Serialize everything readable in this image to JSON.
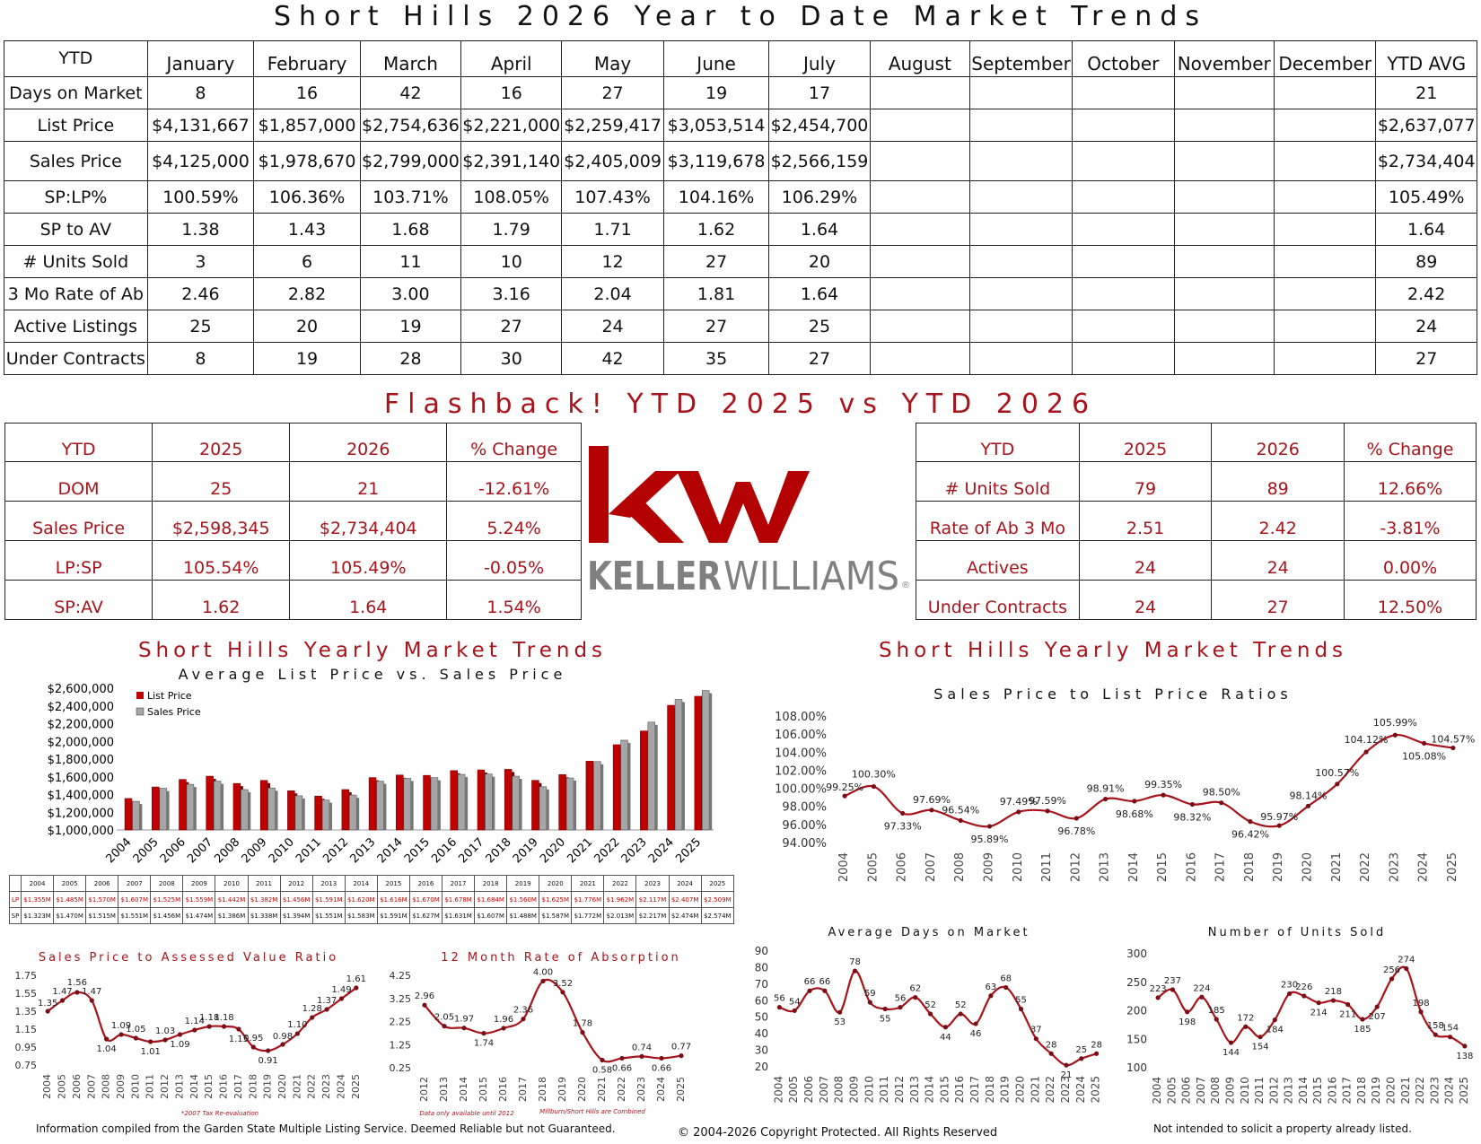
{
  "title": "Short Hills 2026 Year to Date Market Trends",
  "ytd_table": {
    "corner": "YTD",
    "months": [
      "January",
      "February",
      "March",
      "April",
      "May",
      "June",
      "July",
      "August",
      "September",
      "October",
      "November",
      "December",
      "YTD AVG"
    ],
    "rows": [
      {
        "label": "Days on Market",
        "values": [
          "8",
          "16",
          "42",
          "16",
          "27",
          "19",
          "17",
          "",
          "",
          "",
          "",
          "",
          "21"
        ]
      },
      {
        "label": "List Price",
        "values": [
          "$4,131,667",
          "$1,857,000",
          "$2,754,636",
          "$2,221,000",
          "$2,259,417",
          "$3,053,514",
          "$2,454,700",
          "",
          "",
          "",
          "",
          "",
          "$2,637,077"
        ]
      },
      {
        "label": "Sales Price",
        "values": [
          "$4,125,000",
          "$1,978,670",
          "$2,799,000",
          "$2,391,140",
          "$2,405,009",
          "$3,119,678",
          "$2,566,159",
          "",
          "",
          "",
          "",
          "",
          "$2,734,404"
        ]
      },
      {
        "label": "SP:LP%",
        "values": [
          "100.59%",
          "106.36%",
          "103.71%",
          "108.05%",
          "107.43%",
          "104.16%",
          "106.29%",
          "",
          "",
          "",
          "",
          "",
          "105.49%"
        ]
      },
      {
        "label": "SP to AV",
        "values": [
          "1.38",
          "1.43",
          "1.68",
          "1.79",
          "1.71",
          "1.62",
          "1.64",
          "",
          "",
          "",
          "",
          "",
          "1.64"
        ]
      },
      {
        "label": "# Units Sold",
        "values": [
          "3",
          "6",
          "11",
          "10",
          "12",
          "27",
          "20",
          "",
          "",
          "",
          "",
          "",
          "89"
        ]
      },
      {
        "label": "3 Mo Rate of Ab",
        "values": [
          "2.46",
          "2.82",
          "3.00",
          "3.16",
          "2.04",
          "1.81",
          "1.64",
          "",
          "",
          "",
          "",
          "",
          "2.42"
        ]
      },
      {
        "label": "Active Listings",
        "values": [
          "25",
          "20",
          "19",
          "27",
          "24",
          "27",
          "25",
          "",
          "",
          "",
          "",
          "",
          "24"
        ]
      },
      {
        "label": "Under Contracts",
        "values": [
          "8",
          "19",
          "28",
          "30",
          "42",
          "35",
          "27",
          "",
          "",
          "",
          "",
          "",
          "27"
        ]
      }
    ]
  },
  "flashback_title": "Flashback!  YTD 2025 vs YTD 2026",
  "compare_left": {
    "headers": [
      "YTD",
      "2025",
      "2026",
      "% Change"
    ],
    "rows": [
      [
        "DOM",
        "25",
        "21",
        "-12.61%"
      ],
      [
        "Sales Price",
        "$2,598,345",
        "$2,734,404",
        "5.24%"
      ],
      [
        "LP:SP",
        "105.54%",
        "105.49%",
        "-0.05%"
      ],
      [
        "SP:AV",
        "1.62",
        "1.64",
        "1.54%"
      ]
    ]
  },
  "compare_right": {
    "headers": [
      "YTD",
      "2025",
      "2026",
      "% Change"
    ],
    "rows": [
      [
        "# Units Sold",
        "79",
        "89",
        "12.66%"
      ],
      [
        "Rate of Ab 3 Mo",
        "2.51",
        "2.42",
        "-3.81%"
      ],
      [
        "Actives",
        "24",
        "24",
        "0.00%"
      ],
      [
        "Under Contracts",
        "24",
        "27",
        "12.50%"
      ]
    ]
  },
  "logo": {
    "mark": "kw",
    "wordmark_bold": "KELLER",
    "wordmark_light": "WILLIAMS",
    "registered": "®",
    "colors": {
      "red": "#b40101",
      "gray": "#808080"
    }
  },
  "accent_color": "#a8141c",
  "chart_data": [
    {
      "id": "list-vs-sales",
      "type": "bar",
      "title": "Short Hills Yearly Market Trends",
      "subtitle": "Average List Price vs. Sales Price",
      "categories": [
        "2004",
        "2005",
        "2006",
        "2007",
        "2008",
        "2009",
        "2010",
        "2011",
        "2012",
        "2013",
        "2014",
        "2015",
        "2016",
        "2017",
        "2018",
        "2019",
        "2020",
        "2021",
        "2022",
        "2023",
        "2024",
        "2025"
      ],
      "series": [
        {
          "name": "List Price",
          "color": "#c00000",
          "values": [
            1355000,
            1485000,
            1570000,
            1607000,
            1525000,
            1559000,
            1442000,
            1382000,
            1456000,
            1591000,
            1620000,
            1616000,
            1670000,
            1678000,
            1684000,
            1560000,
            1625000,
            1776000,
            1962000,
            2117000,
            2407000,
            2509000
          ]
        },
        {
          "name": "Sales Price",
          "color": "#a6a6a6",
          "values": [
            1323000,
            1470000,
            1515000,
            1551000,
            1456000,
            1474000,
            1386000,
            1338000,
            1394000,
            1551000,
            1583000,
            1591000,
            1627000,
            1631000,
            1607000,
            1488000,
            1587000,
            1772000,
            2013000,
            2217000,
            2474000,
            2574000
          ]
        }
      ],
      "ylim": [
        1000000,
        2600000
      ],
      "yticks": [
        "$1,000,000",
        "$1,200,000",
        "$1,400,000",
        "$1,600,000",
        "$1,800,000",
        "$2,000,000",
        "$2,200,000",
        "$2,400,000",
        "$2,600,000"
      ],
      "legend": "top-left",
      "table": {
        "row_labels": [
          "LP",
          "SP"
        ],
        "lp": [
          "$1.355M",
          "$1.485M",
          "$1.570M",
          "$1.607M",
          "$1.525M",
          "$1.559M",
          "$1.442M",
          "$1.382M",
          "$1.456M",
          "$1.591M",
          "$1.620M",
          "$1.616M",
          "$1.670M",
          "$1.678M",
          "$1.684M",
          "$1.560M",
          "$1.625M",
          "$1.776M",
          "$1.962M",
          "$2.117M",
          "$2.407M",
          "$2.509M"
        ],
        "sp": [
          "$1.323M",
          "$1.470M",
          "$1.515M",
          "$1.551M",
          "$1.456M",
          "$1.474M",
          "$1.386M",
          "$1.338M",
          "$1.394M",
          "$1.551M",
          "$1.583M",
          "$1.591M",
          "$1.627M",
          "$1.631M",
          "$1.607M",
          "$1.488M",
          "$1.587M",
          "$1.772M",
          "$2.013M",
          "$2.217M",
          "$2.474M",
          "$2.574M"
        ]
      }
    },
    {
      "id": "sp-lp-ratio",
      "type": "line",
      "title": "Short Hills Yearly Market Trends",
      "subtitle": "Sales Price to List Price Ratios",
      "x": [
        "2004",
        "2005",
        "2006",
        "2007",
        "2008",
        "2009",
        "2010",
        "2011",
        "2012",
        "2013",
        "2014",
        "2015",
        "2016",
        "2017",
        "2018",
        "2019",
        "2020",
        "2021",
        "2022",
        "2023",
        "2024",
        "2025"
      ],
      "values": [
        99.25,
        100.3,
        97.33,
        97.69,
        96.54,
        95.89,
        97.49,
        97.59,
        96.78,
        98.91,
        98.68,
        99.35,
        98.32,
        98.5,
        96.42,
        95.97,
        98.14,
        100.57,
        104.12,
        105.99,
        105.08,
        104.57
      ],
      "labels": [
        "99.25%",
        "100.30%",
        "97.33%",
        "97.69%",
        "96.54%",
        "95.89%",
        "97.49%",
        "97.59%",
        "96.78%",
        "98.91%",
        "98.68%",
        "99.35%",
        "98.32%",
        "98.50%",
        "96.42%",
        "95.97%",
        "98.14%",
        "100.57%",
        "104.12%",
        "105.99%",
        "105.08%",
        "104.57%"
      ],
      "ylim": [
        94,
        108
      ],
      "yticks": [
        "94.00%",
        "96.00%",
        "98.00%",
        "100.00%",
        "102.00%",
        "104.00%",
        "106.00%",
        "108.00%"
      ]
    },
    {
      "id": "sp-av-ratio",
      "type": "line",
      "title": "Sales Price to Assessed Value Ratio",
      "x": [
        "2004",
        "2005",
        "2006",
        "2007",
        "2008",
        "2009",
        "2010",
        "2011",
        "2012",
        "2013",
        "2014",
        "2015",
        "2016",
        "2017",
        "2018",
        "2019",
        "2020",
        "2021",
        "2022",
        "2023",
        "2024",
        "2025"
      ],
      "values": [
        1.35,
        1.47,
        1.56,
        1.47,
        1.04,
        1.09,
        1.05,
        1.01,
        1.03,
        1.09,
        1.14,
        1.18,
        1.18,
        1.15,
        0.95,
        0.91,
        0.98,
        1.1,
        1.28,
        1.37,
        1.49,
        1.61
      ],
      "labels": [
        "1.35",
        "1.47",
        "1.56",
        "1.47",
        "1.04",
        "1.09",
        "1.05",
        "1.01",
        "1.03",
        "1.09",
        "1.14",
        "1.18",
        "1.18",
        "1.15",
        "0.95",
        "0.91",
        "0.98",
        "1.10",
        "1.28",
        "1.37",
        "1.49",
        "1.61"
      ],
      "ylim": [
        0.75,
        1.75
      ],
      "yticks": [
        "0.75",
        "0.95",
        "1.15",
        "1.35",
        "1.55",
        "1.75"
      ],
      "note": "*2007 Tax Re-evaluation"
    },
    {
      "id": "rate-absorption",
      "type": "line",
      "title": "12 Month Rate of Absorption",
      "x": [
        "2012",
        "2013",
        "2014",
        "2015",
        "2016",
        "2017",
        "2018",
        "2019",
        "2020",
        "2021",
        "2022",
        "2023",
        "2024",
        "2025"
      ],
      "values": [
        2.96,
        2.05,
        1.97,
        1.74,
        1.96,
        2.36,
        4.0,
        3.52,
        1.78,
        0.58,
        0.66,
        0.74,
        0.66,
        0.77
      ],
      "labels": [
        "2.96",
        "2.05",
        "1.97",
        "1.74",
        "1.96",
        "2.36",
        "4.00",
        "3.52",
        "1.78",
        "0.58",
        "0.66",
        "0.74",
        "0.66",
        "0.77"
      ],
      "ylim": [
        0.25,
        4.25
      ],
      "yticks": [
        "0.25",
        "1.25",
        "2.25",
        "3.25",
        "4.25"
      ],
      "notes": [
        "Data only available until 2012",
        "Millburn/Short Hills are Combined"
      ]
    },
    {
      "id": "days-on-market",
      "type": "line",
      "title": "Average Days on Market",
      "x": [
        "2004",
        "2005",
        "2006",
        "2007",
        "2008",
        "2009",
        "2010",
        "2011",
        "2012",
        "2013",
        "2014",
        "2015",
        "2016",
        "2017",
        "2018",
        "2019",
        "2020",
        "2021",
        "2022",
        "2023",
        "2024",
        "2025"
      ],
      "values": [
        56,
        54,
        66,
        66,
        53,
        78,
        59,
        55,
        56,
        62,
        52,
        44,
        52,
        46,
        63,
        68,
        55,
        37,
        28,
        21,
        25,
        28
      ],
      "labels": [
        "56",
        "54",
        "66",
        "66",
        "53",
        "78",
        "59",
        "55",
        "56",
        "62",
        "52",
        "44",
        "52",
        "46",
        "63",
        "68",
        "55",
        "37",
        "28",
        "21",
        "25",
        "28"
      ],
      "ylim": [
        20,
        90
      ],
      "yticks": [
        "20",
        "30",
        "40",
        "50",
        "60",
        "70",
        "80",
        "90"
      ]
    },
    {
      "id": "units-sold",
      "type": "line",
      "title": "Number of Units Sold",
      "x": [
        "2004",
        "2005",
        "2006",
        "2007",
        "2008",
        "2009",
        "2010",
        "2011",
        "2012",
        "2013",
        "2014",
        "2015",
        "2016",
        "2017",
        "2018",
        "2019",
        "2020",
        "2021",
        "2022",
        "2023",
        "2024",
        "2025"
      ],
      "values": [
        223,
        237,
        198,
        224,
        185,
        144,
        172,
        154,
        184,
        230,
        226,
        214,
        218,
        211,
        185,
        207,
        256,
        274,
        198,
        158,
        154,
        138
      ],
      "labels": [
        "223",
        "237",
        "198",
        "224",
        "185",
        "144",
        "172",
        "154",
        "184",
        "230",
        "226",
        "214",
        "218",
        "211",
        "185",
        "207",
        "256",
        "274",
        "198",
        "158",
        "154",
        "138"
      ],
      "ylim": [
        100,
        300
      ],
      "yticks": [
        "100",
        "150",
        "200",
        "250",
        "300"
      ]
    }
  ],
  "footer": {
    "left": "Information compiled from the Garden State Multiple Listing Service.  Deemed Reliable but not Guaranteed.",
    "center": "© 2004-2026 Copyright Protected.  All Rights Reserved",
    "right": "Not intended to solicit a property already listed."
  }
}
